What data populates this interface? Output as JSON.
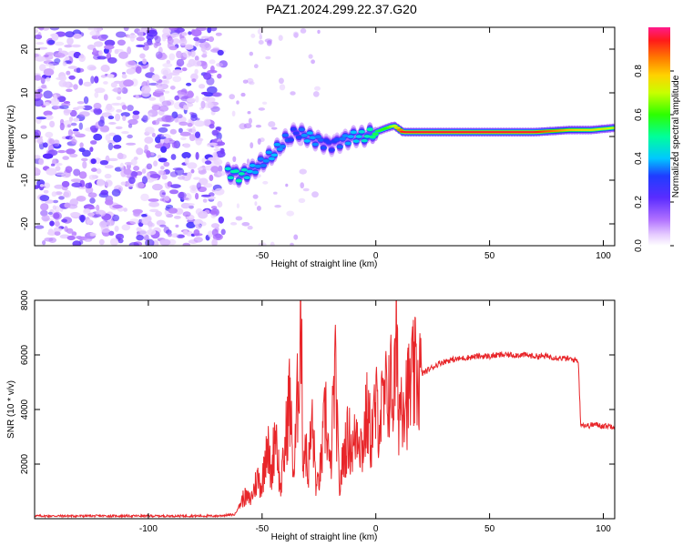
{
  "title": "PAZ1.2024.299.22.37.G20",
  "colors": {
    "snr_line": "#e8262a",
    "spectrogram_noise": "#8a2be2",
    "axis": "#000000"
  },
  "chart_data": [
    {
      "type": "heatmap",
      "title": "PAZ1.2024.299.22.37.G20",
      "xlabel": "Height of straight line (km)",
      "ylabel": "Frequency (Hz)",
      "xlim": [
        -150,
        105
      ],
      "ylim": [
        -25,
        25
      ],
      "xticks": [
        -100,
        -50,
        0,
        50,
        100
      ],
      "yticks": [
        -20,
        -10,
        0,
        10,
        20
      ],
      "colorbar": {
        "label": "Normalized spectral amplitude",
        "range": [
          0.0,
          1.0
        ],
        "ticks": [
          0.0,
          0.2,
          0.4,
          0.6,
          0.8
        ],
        "tick_labels": [
          "0.0",
          "0.2",
          "0.4",
          "0.6",
          "0.8"
        ]
      },
      "ridge": {
        "x": [
          -65,
          -60,
          -55,
          -50,
          -45,
          -40,
          -35,
          -30,
          -25,
          -20,
          -15,
          -10,
          -5,
          0,
          5,
          8,
          12,
          20,
          30,
          50,
          70,
          85,
          95,
          105
        ],
        "frequency": [
          -8,
          -9,
          -8,
          -6,
          -4,
          -1,
          1,
          0,
          -1,
          -2,
          -1,
          0,
          0,
          1,
          2,
          2.5,
          1,
          1,
          1,
          1,
          1,
          1.5,
          1.5,
          2
        ],
        "amplitude": [
          0.45,
          0.5,
          0.4,
          0.35,
          0.4,
          0.35,
          0.3,
          0.4,
          0.35,
          0.3,
          0.35,
          0.4,
          0.45,
          0.55,
          0.6,
          0.7,
          0.95,
          0.95,
          0.95,
          0.95,
          0.95,
          0.8,
          0.75,
          0.7
        ]
      },
      "noise_region_x": [
        -150,
        -67
      ]
    },
    {
      "type": "line",
      "xlabel": "Height of straight line (km)",
      "ylabel": "SNR (10 * v/v)",
      "xlim": [
        -150,
        105
      ],
      "ylim": [
        0,
        8000
      ],
      "xticks": [
        -100,
        -50,
        0,
        50,
        100
      ],
      "yticks": [
        2000,
        4000,
        6000,
        8000
      ],
      "series": [
        {
          "x": [
            -150,
            -130,
            -110,
            -90,
            -70,
            -62,
            -60,
            -58,
            -55,
            -52,
            -50,
            -48,
            -46,
            -44,
            -42,
            -40,
            -38,
            -36,
            -34,
            -33,
            -32,
            -31,
            -30,
            -28,
            -26,
            -24,
            -22,
            -20,
            -18,
            -16,
            -14,
            -12,
            -10,
            -8,
            -6,
            -4,
            -2,
            0,
            2,
            4,
            6,
            8,
            9,
            10,
            12,
            14,
            16,
            18,
            20,
            24,
            28,
            32,
            36,
            40,
            45,
            50,
            55,
            60,
            65,
            70,
            75,
            80,
            85,
            89,
            90,
            91,
            93,
            96,
            100,
            105
          ],
          "values": [
            100,
            100,
            100,
            100,
            100,
            150,
            500,
            800,
            700,
            1500,
            1200,
            3000,
            1500,
            3500,
            1000,
            2500,
            4500,
            1500,
            5200,
            8000,
            2000,
            3000,
            1500,
            3500,
            1000,
            2000,
            4000,
            1500,
            5500,
            1000,
            2500,
            3000,
            2500,
            3500,
            2500,
            3800,
            3000,
            4000,
            3800,
            4200,
            5000,
            4500,
            6500,
            4000,
            4800,
            4500,
            5000,
            5200,
            5300,
            5500,
            5700,
            5800,
            5850,
            5900,
            5950,
            5950,
            6000,
            6000,
            6000,
            5950,
            5950,
            5900,
            5850,
            5800,
            3500,
            3450,
            3400,
            3450,
            3400,
            3400
          ]
        }
      ]
    }
  ]
}
